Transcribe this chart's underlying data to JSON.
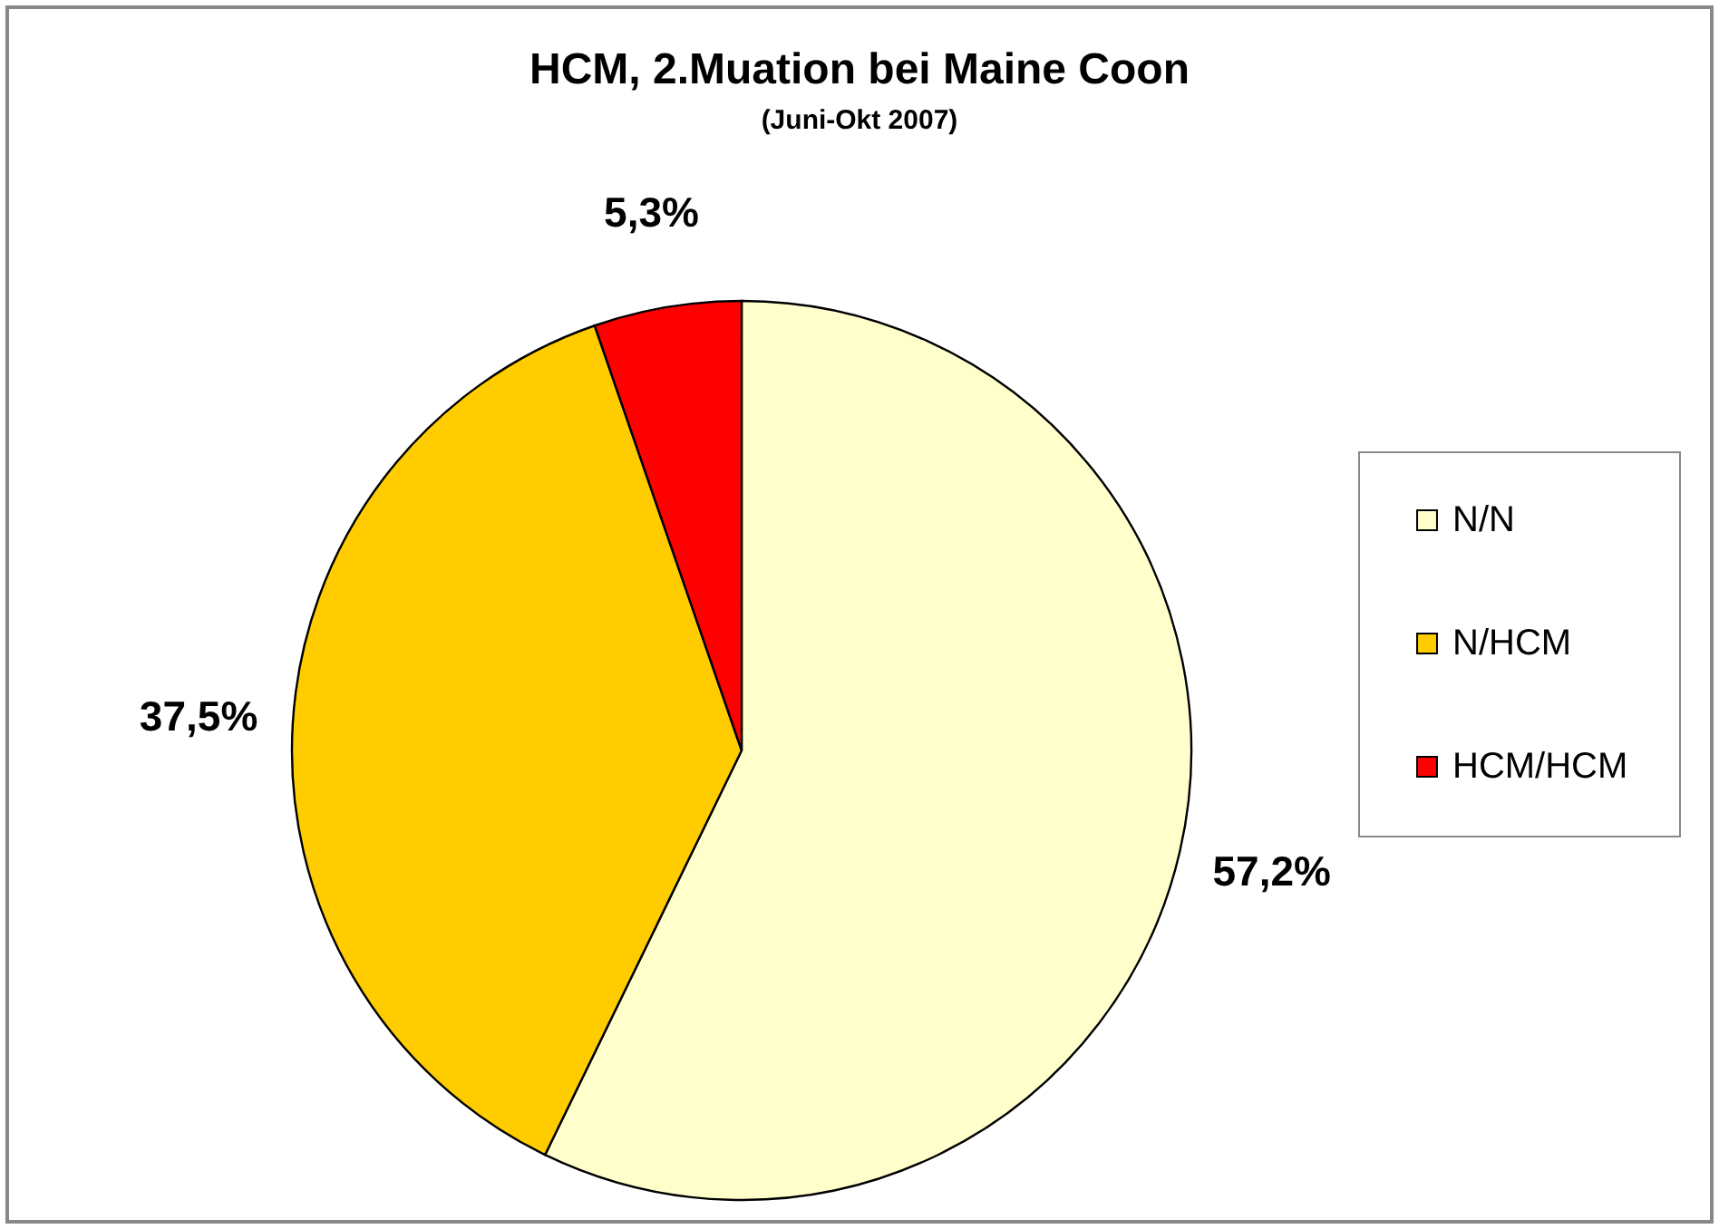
{
  "chart_data": {
    "type": "pie",
    "title": "HCM,  2.Muation bei Maine Coon",
    "subtitle": "(Juni-Okt 2007)",
    "categories": [
      "N/N",
      "N/HCM",
      "HCM/HCM"
    ],
    "values": [
      57.2,
      37.5,
      5.3
    ],
    "colors": [
      "#ffffcc",
      "#ffcc00",
      "#ff0000"
    ],
    "value_labels": [
      "57,2%",
      "37,5%",
      "5,3%"
    ],
    "legend": "right"
  }
}
